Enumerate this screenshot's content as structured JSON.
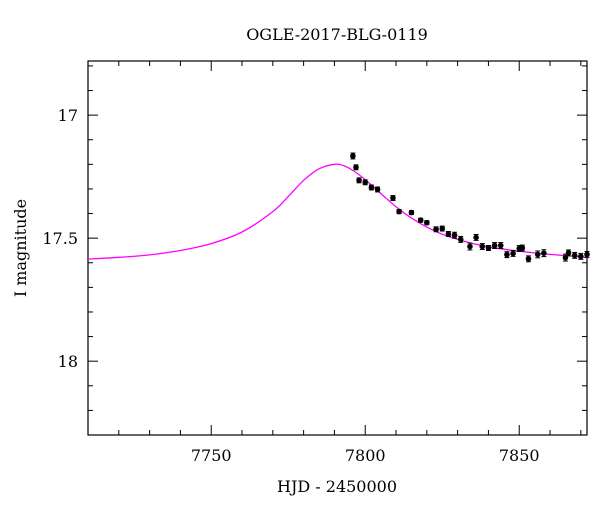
{
  "chart_data": {
    "type": "scatter",
    "title": "OGLE-2017-BLG-0119",
    "xlabel": "HJD - 2450000",
    "ylabel": "I magnitude",
    "xlim": [
      7710,
      7872
    ],
    "ylim": [
      18.3,
      16.78
    ],
    "y_inverted": true,
    "x_ticks": [
      7750,
      7800,
      7850
    ],
    "y_ticks": [
      17,
      17.5,
      18
    ],
    "x_tick_labels": [
      "7750",
      "7800",
      "7850"
    ],
    "y_tick_labels": [
      "17",
      "17.5",
      "18"
    ],
    "grid": false,
    "series": [
      {
        "kind": "model",
        "color": "#ff00ff",
        "x": [
          7710,
          7720,
          7730,
          7740,
          7750,
          7760,
          7770,
          7775,
          7780,
          7785,
          7790,
          7793,
          7796,
          7800,
          7805,
          7810,
          7815,
          7820,
          7825,
          7830,
          7835,
          7840,
          7845,
          7850,
          7855,
          7860,
          7865,
          7870,
          7872
        ],
        "y": [
          17.585,
          17.578,
          17.568,
          17.55,
          17.522,
          17.475,
          17.392,
          17.331,
          17.265,
          17.218,
          17.2,
          17.205,
          17.225,
          17.262,
          17.318,
          17.372,
          17.418,
          17.455,
          17.484,
          17.505,
          17.522,
          17.535,
          17.545,
          17.553,
          17.56,
          17.566,
          17.571,
          17.576,
          17.578
        ]
      },
      {
        "kind": "observed",
        "color": "#000000",
        "x": [
          7796,
          7797,
          7798,
          7800,
          7802,
          7804,
          7809,
          7811,
          7815,
          7818,
          7820,
          7823,
          7825,
          7827,
          7829,
          7831,
          7834,
          7836,
          7838,
          7840,
          7842,
          7844,
          7846,
          7848,
          7850,
          7851,
          7853,
          7856,
          7858,
          7865,
          7866,
          7868,
          7870,
          7872
        ],
        "y": [
          17.166,
          17.212,
          17.265,
          17.273,
          17.294,
          17.302,
          17.337,
          17.392,
          17.396,
          17.427,
          17.437,
          17.464,
          17.461,
          17.483,
          17.488,
          17.505,
          17.534,
          17.497,
          17.534,
          17.54,
          17.53,
          17.53,
          17.567,
          17.562,
          17.542,
          17.54,
          17.584,
          17.566,
          17.561,
          17.579,
          17.56,
          17.57,
          17.574,
          17.566
        ],
        "err": [
          0.012,
          0.01,
          0.01,
          0.01,
          0.01,
          0.01,
          0.01,
          0.008,
          0.008,
          0.008,
          0.008,
          0.01,
          0.01,
          0.01,
          0.012,
          0.012,
          0.014,
          0.012,
          0.012,
          0.01,
          0.012,
          0.012,
          0.012,
          0.012,
          0.012,
          0.012,
          0.012,
          0.014,
          0.014,
          0.014,
          0.012,
          0.012,
          0.012,
          0.012
        ]
      }
    ]
  }
}
